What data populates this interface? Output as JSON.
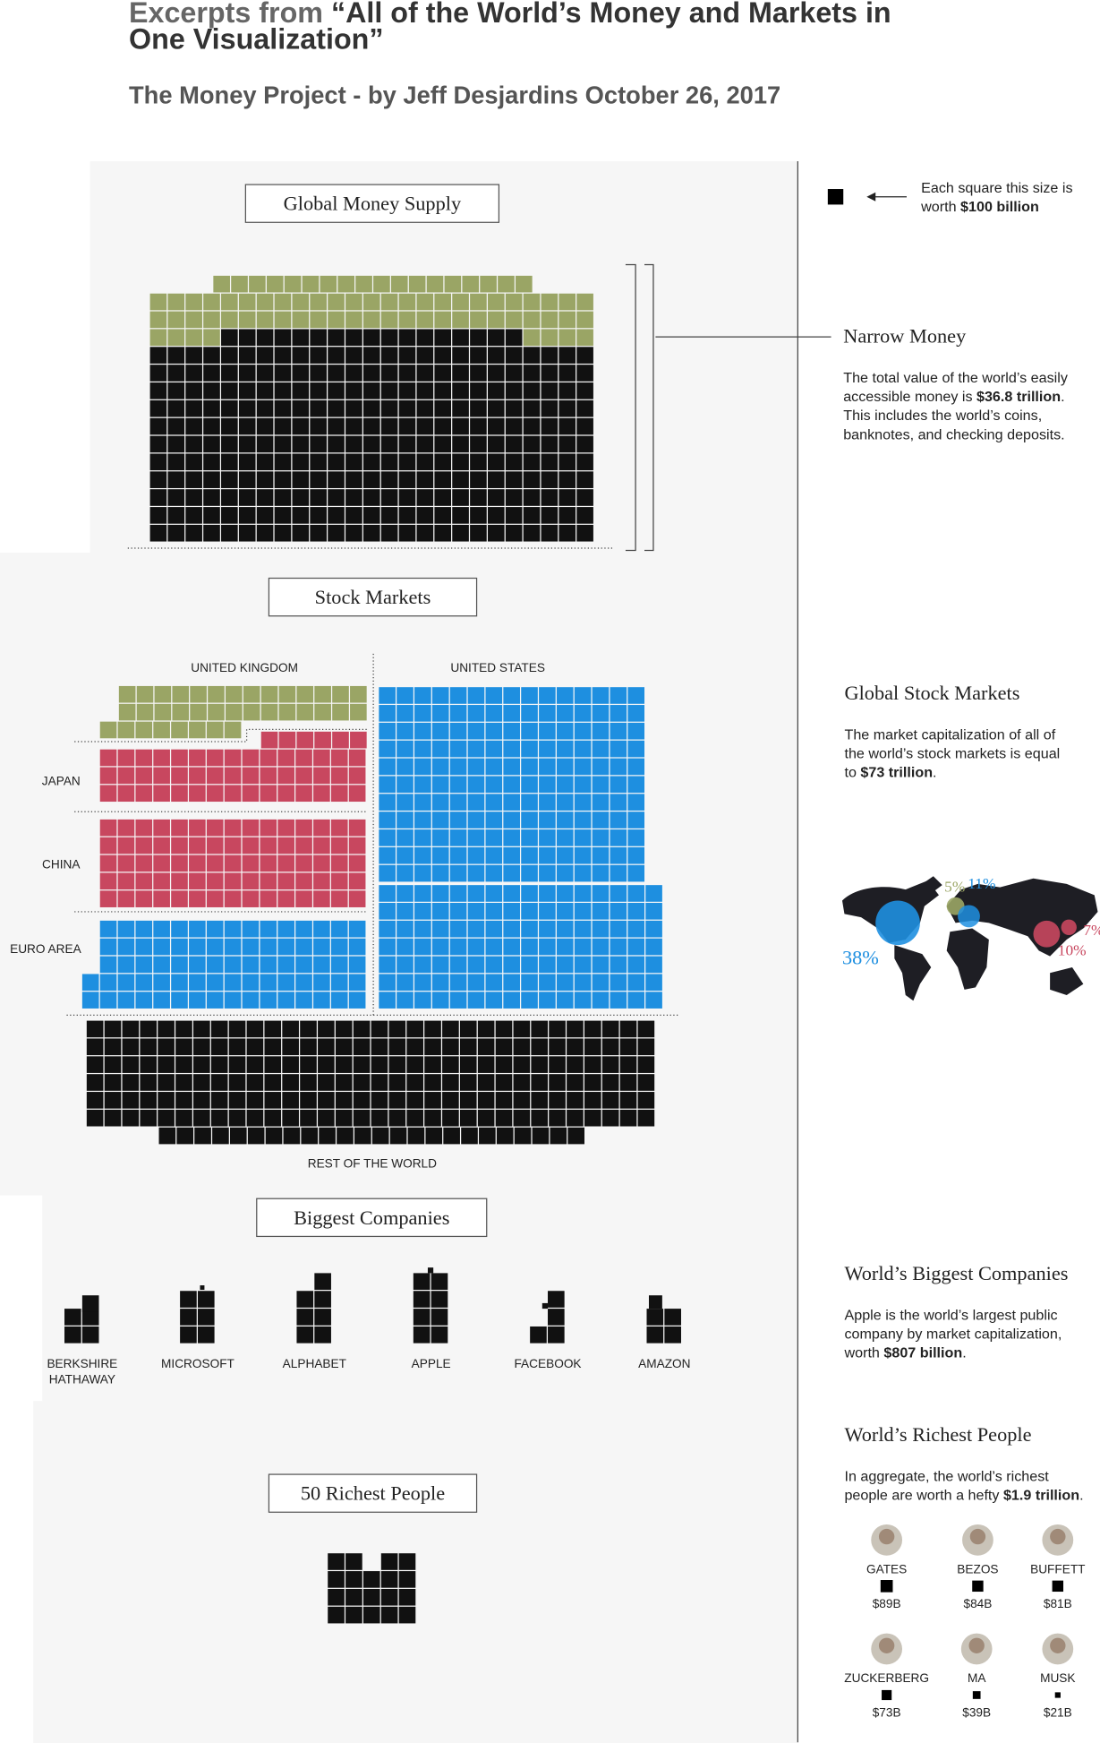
{
  "header": {
    "title": [
      [
        "Excerpts from ",
        "“All of the World’s Money and Markets in"
      ],
      [
        "One Visualization”"
      ]
    ],
    "subtitle": "The Money Project - by Jeff Desjardins October 26, 2017"
  },
  "legend": [
    [
      "Each square this size is"
    ],
    [
      "worth ",
      "$100 billion"
    ]
  ],
  "sections": {
    "money_supply": "Global Money Supply",
    "stock_markets": "Stock Markets",
    "companies": "Biggest Companies",
    "richest": "50 Richest People"
  },
  "stock_labels": {
    "uk": "UNITED KINGDOM",
    "us": "UNITED STATES",
    "japan": "JAPAN",
    "china": "CHINA",
    "euro": "EURO AREA",
    "rest": "REST OF THE WORLD"
  },
  "companies": [
    "BERKSHIRE\nHATHAWAY",
    "MICROSOFT",
    "ALPHABET",
    "APPLE",
    "FACEBOOK",
    "AMAZON"
  ],
  "notes": {
    "narrow_money": {
      "heading": "Narrow Money",
      "body": [
        [
          "The total value of the world’s easily"
        ],
        [
          "accessible money is ",
          "$36.8 trillion",
          "."
        ],
        [
          "This includes the world’s coins,"
        ],
        [
          "banknotes, and checking deposits."
        ]
      ]
    },
    "stock_markets": {
      "heading": "Global Stock Markets",
      "body": [
        [
          "The market capitalization of all of"
        ],
        [
          "the world’s stock markets is equal"
        ],
        [
          "to ",
          "$73 trillion",
          "."
        ]
      ]
    },
    "companies": {
      "heading": "World’s Biggest Companies",
      "body": [
        [
          "Apple is the world’s largest public"
        ],
        [
          "company by market capitalization,"
        ],
        [
          "worth ",
          "$807 billion",
          "."
        ]
      ]
    },
    "richest": {
      "heading": "World’s Richest People",
      "body": [
        [
          "In aggregate, the world’s richest"
        ],
        [
          "people are worth a hefty ",
          "$1.9 trillion",
          "."
        ]
      ]
    }
  },
  "map_labels": {
    "us": "38%",
    "uk": "5%",
    "europe": "11%",
    "japan": "7%",
    "china": "10%"
  },
  "people": [
    {
      "name": "GATES",
      "value": "$89B"
    },
    {
      "name": "BEZOS",
      "value": "$84B"
    },
    {
      "name": "BUFFETT",
      "value": "$81B"
    },
    {
      "name": "ZUCKERBERG",
      "value": "$73B"
    },
    {
      "name": "MA",
      "value": "$39B"
    },
    {
      "name": "MUSK",
      "value": "$21B"
    }
  ]
}
